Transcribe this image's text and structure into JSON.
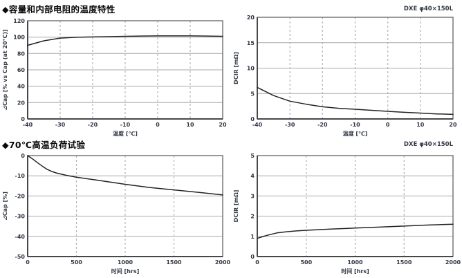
{
  "page": {
    "section1_title": "◆容量和内部电阻的温度特性",
    "section2_title": "◆70℃高温负荷试验"
  },
  "colors": {
    "curve": "#232323",
    "grid": "#a8a8a8",
    "grid_dashed": "#b3b3b3",
    "box": "#6e6e6e",
    "axis": "#474747",
    "text": "#323846"
  },
  "chart_data": [
    {
      "id": "cap-temp",
      "type": "line",
      "corner_label": "",
      "xlabel": "温度 [℃]",
      "ylabel": "⊿Cap [% vs Cap (at 20℃)]",
      "xlim": [
        -40,
        20
      ],
      "ylim": [
        0,
        120
      ],
      "xticks": [
        -40,
        -30,
        -20,
        -10,
        0,
        10,
        20
      ],
      "yticks": [
        0,
        20,
        40,
        60,
        80,
        100,
        120
      ],
      "x": [
        -40,
        -35,
        -30,
        -25,
        -20,
        -15,
        -10,
        -5,
        0,
        5,
        10,
        15,
        20
      ],
      "y": [
        90,
        95.5,
        98.8,
        99.8,
        100.2,
        100.6,
        101,
        101.3,
        101.5,
        101.5,
        101.5,
        101.3,
        101
      ]
    },
    {
      "id": "dcir-temp",
      "type": "line",
      "corner_label": "DXE φ40×150L",
      "xlabel": "温度 [℃]",
      "ylabel": "DCIR [mΩ]",
      "xlim": [
        -40,
        20
      ],
      "ylim": [
        0,
        20
      ],
      "xticks": [
        -40,
        -30,
        -20,
        -10,
        0,
        10,
        20
      ],
      "yticks": [
        0,
        5,
        10,
        15,
        20
      ],
      "x": [
        -40,
        -35,
        -30,
        -25,
        -20,
        -15,
        -10,
        -5,
        0,
        5,
        10,
        15,
        20
      ],
      "y": [
        6.2,
        4.6,
        3.5,
        2.9,
        2.4,
        2.1,
        1.9,
        1.7,
        1.5,
        1.3,
        1.15,
        1.0,
        0.9
      ]
    },
    {
      "id": "cap-time",
      "type": "line",
      "corner_label": "",
      "xlabel": "时间 [hrs]",
      "ylabel": "⊿Cap [%]",
      "xlim": [
        0,
        2000
      ],
      "ylim": [
        -50,
        0
      ],
      "xticks": [
        0,
        500,
        1000,
        1500,
        2000
      ],
      "yticks": [
        0,
        -10,
        -20,
        -30,
        -40,
        -50
      ],
      "x": [
        0,
        50,
        100,
        150,
        200,
        250,
        300,
        400,
        500,
        700,
        1000,
        1250,
        1500,
        1750,
        2000
      ],
      "y": [
        0,
        -1.6,
        -3.5,
        -5.2,
        -6.8,
        -7.9,
        -8.7,
        -9.8,
        -10.7,
        -12.1,
        -14.2,
        -15.8,
        -17.0,
        -18.2,
        -19.5
      ]
    },
    {
      "id": "dcir-time",
      "type": "line",
      "corner_label": "DXE φ40×150L",
      "xlabel": "时间 [hrs]",
      "ylabel": "DCIR [mΩ]",
      "xlim": [
        0,
        2000
      ],
      "ylim": [
        0,
        5
      ],
      "xticks": [
        0,
        500,
        1000,
        1500,
        2000
      ],
      "yticks": [
        0,
        1,
        2,
        3,
        4,
        5
      ],
      "x": [
        0,
        50,
        100,
        200,
        300,
        400,
        500,
        750,
        1000,
        1250,
        1500,
        1750,
        2000
      ],
      "y": [
        0.9,
        0.98,
        1.05,
        1.17,
        1.23,
        1.27,
        1.3,
        1.36,
        1.41,
        1.46,
        1.51,
        1.56,
        1.6
      ]
    }
  ]
}
